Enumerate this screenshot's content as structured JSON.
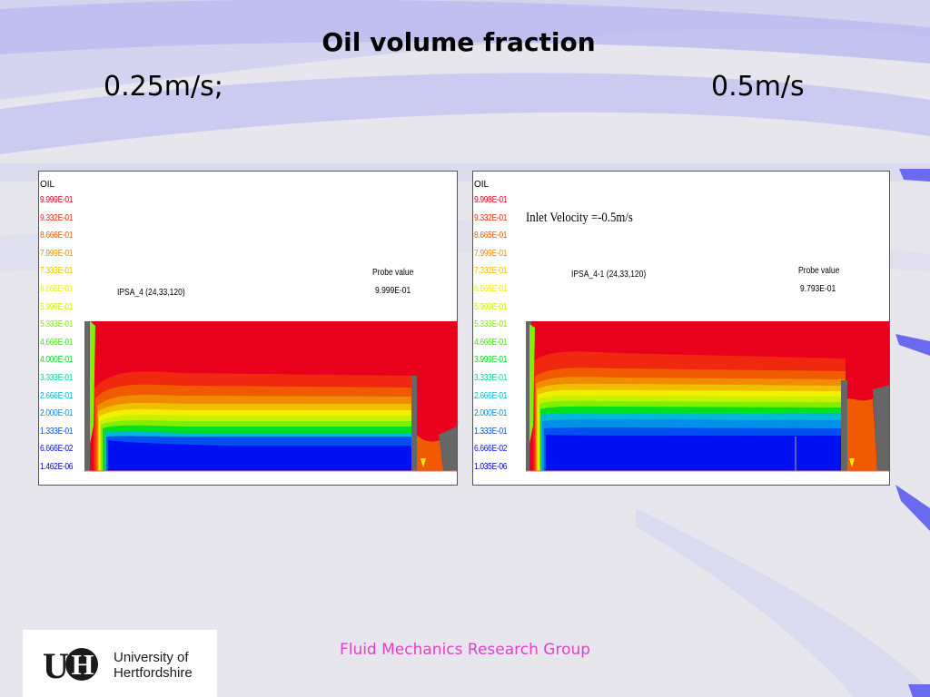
{
  "slide": {
    "title": "Oil volume fraction",
    "left_speed": "0.25m/s;",
    "right_speed": "0.5m/s",
    "footer": "Fluid Mechanics Research Group"
  },
  "logo": {
    "mark": "UH",
    "line1": "University of",
    "line2": "Hertfordshire"
  },
  "left_panel": {
    "legend_title": "OIL",
    "legend": [
      "9.999E-01",
      "9.332E-01",
      "8.666E-01",
      "7.999E-01",
      "7.333E-01",
      "6.666E-01",
      "5.999E-01",
      "5.333E-01",
      "4.666E-01",
      "4.000E-01",
      "3.333E-01",
      "2.666E-01",
      "2.000E-01",
      "1.333E-01",
      "6.666E-02",
      "1.462E-06"
    ],
    "case_label": "IPSA_4 (24,33,120)",
    "probe_label": "Probe value",
    "probe_value": "9.999E-01"
  },
  "right_panel": {
    "legend_title": "OIL",
    "legend": [
      "9.998E-01",
      "9.332E-01",
      "8.665E-01",
      "7.999E-01",
      "7.332E-01",
      "6.666E-01",
      "5.999E-01",
      "5.333E-01",
      "4.666E-01",
      "3.999E-01",
      "3.333E-01",
      "2.666E-01",
      "2.000E-01",
      "1.333E-01",
      "6.666E-02",
      "1.035E-06"
    ],
    "inlet_label": "Inlet Velocity =-0.5m/s",
    "case_label": "IPSA_4-1 (24,33,120)",
    "probe_label": "Probe value",
    "probe_value": "9.793E-01"
  },
  "colors": {
    "legend": [
      "#e8001c",
      "#f02810",
      "#f05a00",
      "#f08c00",
      "#f0c000",
      "#f0f000",
      "#c8f000",
      "#80f000",
      "#30f000",
      "#00e020",
      "#00d8a0",
      "#00b8d8",
      "#0090e8",
      "#0050f0",
      "#0010f0",
      "#0000c0"
    ]
  }
}
